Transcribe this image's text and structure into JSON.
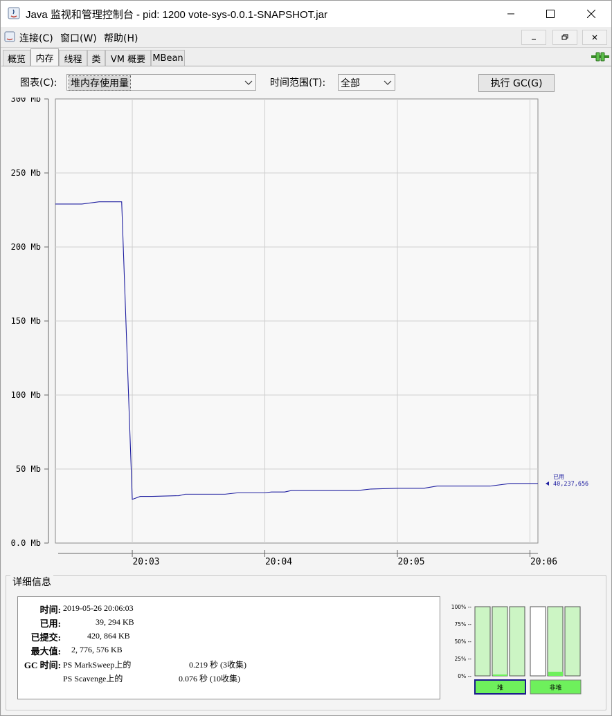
{
  "window": {
    "title": "Java 监视和管理控制台 - pid: 1200 vote-sys-0.0.1-SNAPSHOT.jar"
  },
  "menu": {
    "items": [
      "连接(C)",
      "窗口(W)",
      "帮助(H)"
    ]
  },
  "tabs": [
    "概览",
    "内存",
    "线程",
    "类",
    "VM 概要",
    "MBean"
  ],
  "active_tab": "内存",
  "toolbar": {
    "chart_label": "图表(C):",
    "chart_value": "堆内存使用量",
    "range_label": "时间范围(T):",
    "range_value": "全部",
    "gc_button": "执行 GC(G)"
  },
  "chart_data": {
    "type": "line",
    "y_tick_labels": [
      "0.0 Mb",
      "50 Mb",
      "100 Mb",
      "150 Mb",
      "200 Mb",
      "250 Mb",
      "300 Mb"
    ],
    "ylim": [
      0,
      300
    ],
    "x_tick_labels": [
      "20:03",
      "20:04",
      "20:05",
      "20:06"
    ],
    "x_unit": "minutes since 20:00",
    "xlim": [
      2.42,
      6.06
    ],
    "grid": true,
    "series": [
      {
        "name": "已用",
        "color": "#1e1ea0",
        "x": [
          2.42,
          2.55,
          2.62,
          2.75,
          2.85,
          2.92,
          3.0,
          3.06,
          3.15,
          3.35,
          3.4,
          3.7,
          3.8,
          4.0,
          4.05,
          4.15,
          4.2,
          4.4,
          4.6,
          4.7,
          4.8,
          5.0,
          5.1,
          5.2,
          5.3,
          5.6,
          5.7,
          5.85,
          6.06
        ],
        "values": [
          229,
          229,
          229,
          230.5,
          230.5,
          230.5,
          29.5,
          31.5,
          31.5,
          32,
          33,
          33,
          34,
          34,
          34.5,
          34.5,
          35.5,
          35.5,
          35.5,
          35.5,
          36.5,
          37,
          37,
          37,
          38.5,
          38.5,
          38.5,
          40.2,
          40.2
        ]
      }
    ],
    "end_label": {
      "name": "已用",
      "value": "40,237,656"
    }
  },
  "details": {
    "title": "详细信息",
    "rows": [
      {
        "label": "时间:",
        "value": "2019-05-26 20:06:03"
      },
      {
        "label": "已用:",
        "value": "39, 294 KB"
      },
      {
        "label": "已提交:",
        "value": "420, 864 KB"
      },
      {
        "label": "最大值:",
        "value": "2, 776, 576 KB"
      },
      {
        "label": "GC 时间:",
        "value": "PS MarkSweep上的",
        "value2": "0.219 秒 (3收集)"
      },
      {
        "label": "",
        "value": "PS Scavenge上的",
        "value2": "0.076 秒 (10收集)"
      }
    ]
  },
  "pool_bars": {
    "scale_labels": [
      "100% --",
      "75% --",
      "50% --",
      "25% --",
      "0% --"
    ],
    "groups": [
      {
        "label": "堆",
        "selected": true,
        "fills": [
          0.0,
          0.02,
          0.0
        ]
      },
      {
        "label": "非堆",
        "selected": false,
        "fills": [
          0.0,
          0.06,
          0.0
        ]
      }
    ]
  },
  "colors": {
    "series_line": "#1e1ea0",
    "bar_fill": "#ccf5c4",
    "bar_used": "#6ef05c",
    "selected_border": "#1a1a8a"
  }
}
